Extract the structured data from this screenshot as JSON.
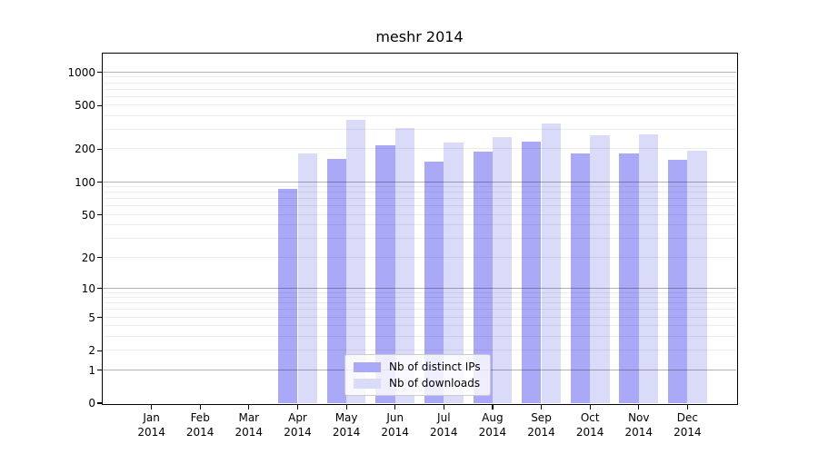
{
  "chart_data": {
    "type": "bar",
    "title": "meshr 2014",
    "categories": [
      [
        "Jan",
        "2014"
      ],
      [
        "Feb",
        "2014"
      ],
      [
        "Mar",
        "2014"
      ],
      [
        "Apr",
        "2014"
      ],
      [
        "May",
        "2014"
      ],
      [
        "Jun",
        "2014"
      ],
      [
        "Jul",
        "2014"
      ],
      [
        "Aug",
        "2014"
      ],
      [
        "Sep",
        "2014"
      ],
      [
        "Oct",
        "2014"
      ],
      [
        "Nov",
        "2014"
      ],
      [
        "Dec",
        "2014"
      ]
    ],
    "series": [
      {
        "name": "Nb of distinct IPs",
        "color": "#a9a9f7",
        "values": [
          0,
          0,
          0,
          87,
          164,
          216,
          155,
          190,
          236,
          183,
          185,
          161
        ]
      },
      {
        "name": "Nb of downloads",
        "color": "#dadaf9",
        "values": [
          0,
          0,
          0,
          184,
          373,
          310,
          232,
          256,
          345,
          270,
          275,
          195
        ]
      }
    ],
    "y_ticks": [
      0,
      1,
      2,
      5,
      10,
      20,
      50,
      100,
      200,
      500,
      1000
    ],
    "y_scale": "log10(value+1)",
    "ylim": [
      0,
      1483
    ],
    "grid": {
      "major_values": [
        1,
        10,
        100,
        1000
      ],
      "minor_values": [
        2,
        3,
        4,
        5,
        6,
        7,
        8,
        9,
        20,
        30,
        40,
        50,
        60,
        70,
        80,
        90,
        200,
        300,
        400,
        500,
        600,
        700,
        800,
        900
      ]
    },
    "legend_position": "lower-center-inside",
    "xlabel": "",
    "ylabel": ""
  }
}
